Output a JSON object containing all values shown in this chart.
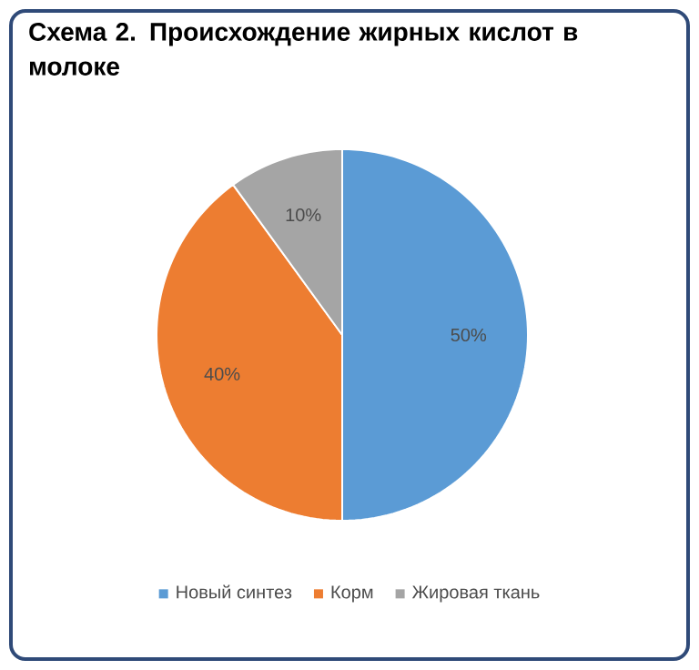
{
  "chart_data": {
    "type": "pie",
    "title": "Схема 2. Происхождение жирных кислот в молоке",
    "categories": [
      "Новый синтез",
      "Корм",
      "Жировая ткань"
    ],
    "values": [
      50,
      40,
      10
    ],
    "colors": [
      "#5b9bd5",
      "#ed7d31",
      "#a5a5a5"
    ],
    "data_labels": true,
    "value_labels": [
      "50%",
      "40%",
      "10%"
    ],
    "legend": "bottom"
  }
}
